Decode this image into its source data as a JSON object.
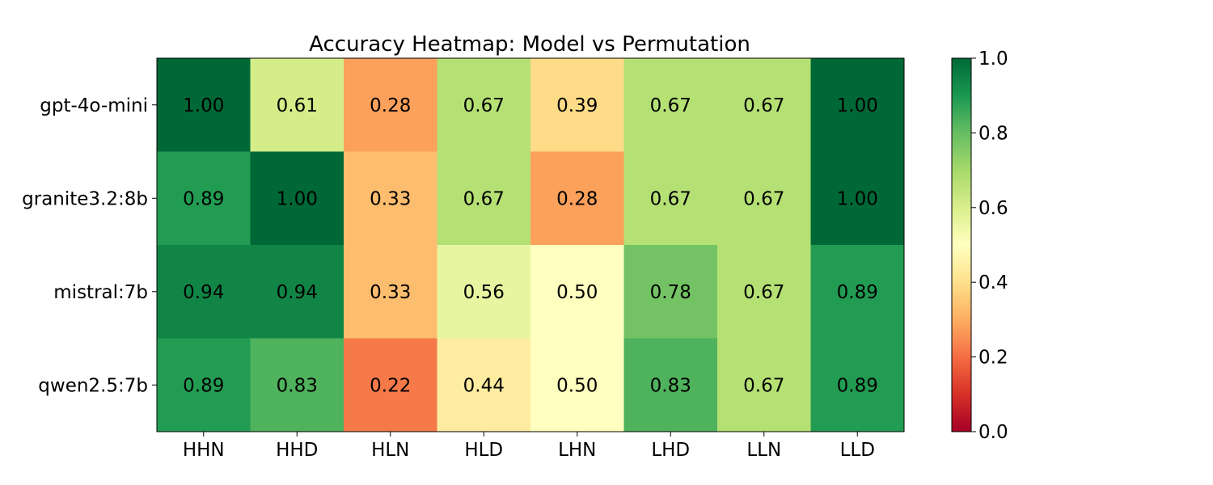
{
  "chart_data": {
    "type": "heatmap",
    "title": "Accuracy Heatmap: Model vs Permutation",
    "xlabel": "",
    "ylabel": "",
    "x_categories": [
      "HHN",
      "HHD",
      "HLN",
      "HLD",
      "LHN",
      "LHD",
      "LLN",
      "LLD"
    ],
    "y_categories": [
      "gpt-4o-mini",
      "granite3.2:8b",
      "mistral:7b",
      "qwen2.5:7b"
    ],
    "values": [
      [
        1.0,
        0.61,
        0.28,
        0.67,
        0.39,
        0.67,
        0.67,
        1.0
      ],
      [
        0.89,
        1.0,
        0.33,
        0.67,
        0.28,
        0.67,
        0.67,
        1.0
      ],
      [
        0.94,
        0.94,
        0.33,
        0.56,
        0.5,
        0.78,
        0.67,
        0.89
      ],
      [
        0.89,
        0.83,
        0.22,
        0.44,
        0.5,
        0.83,
        0.67,
        0.89
      ]
    ],
    "value_format": "2 decimals",
    "colormap": "RdYlGn",
    "vmin": 0.0,
    "vmax": 1.0,
    "colorbar_ticks": [
      "0.0",
      "0.2",
      "0.4",
      "0.6",
      "0.8",
      "1.0"
    ],
    "colorbar_placement": "right"
  }
}
